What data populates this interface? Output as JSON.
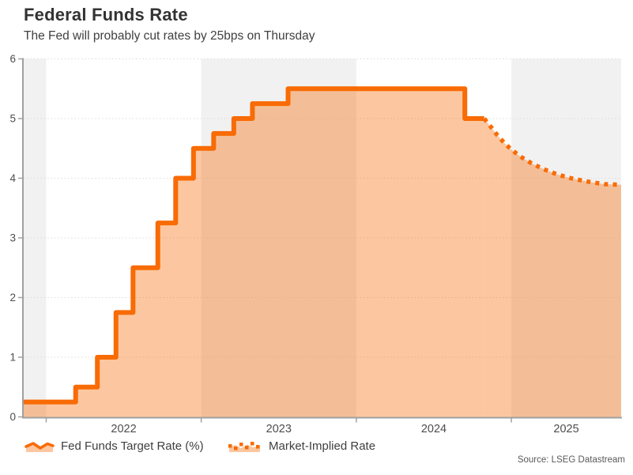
{
  "header": {
    "title": "Federal Funds Rate",
    "subtitle": "The Fed will probably cut rates by 25bps on Thursday"
  },
  "legend": {
    "items": [
      {
        "label": "Fed Funds Target Rate (%)",
        "style": "solid"
      },
      {
        "label": "Market-Implied Rate",
        "style": "dotted"
      }
    ]
  },
  "source": "Source: LSEG Datastream",
  "colors": {
    "line": "#f86b05",
    "fill": "rgba(248,107,5,0.38)",
    "band": "#f1f1f1",
    "grid": "#dcdcdc",
    "axis": "#a0a0a0",
    "tick_text": "#4d4d4d",
    "title_text": "#333333",
    "subtitle_text": "#404040",
    "legend_text": "#3f3f3f",
    "source_text": "#595959"
  },
  "chart_data": {
    "type": "line",
    "title": "Federal Funds Rate",
    "subtitle": "The Fed will probably cut rates by 25bps on Thursday",
    "xlabel": "",
    "ylabel": "",
    "ylim": [
      0,
      6
    ],
    "yticks": [
      0,
      1,
      2,
      3,
      4,
      5,
      6
    ],
    "x_domain": [
      2021.855,
      2025.708
    ],
    "xticks": [
      {
        "tick": 2022,
        "label": "2022",
        "label_center": 2022.5
      },
      {
        "tick": 2023,
        "label": "2023",
        "label_center": 2023.5
      },
      {
        "tick": 2024,
        "label": "2024",
        "label_center": 2024.5
      },
      {
        "tick": 2025,
        "label": "2025",
        "label_center": 2025.354
      }
    ],
    "shaded_bands": [
      [
        2021.855,
        2022.0
      ],
      [
        2023.0,
        2024.0
      ],
      [
        2025.0,
        2025.708
      ]
    ],
    "grid": "horizontal-dotted",
    "legend_position": "bottom",
    "series": [
      {
        "name": "Fed Funds Target Rate (%)",
        "style": "solid-step",
        "end_x": 2024.825,
        "steps": [
          {
            "x": 2021.855,
            "y": 0.25
          },
          {
            "x": 2022.19,
            "y": 0.5
          },
          {
            "x": 2022.33,
            "y": 1.0
          },
          {
            "x": 2022.45,
            "y": 1.75
          },
          {
            "x": 2022.56,
            "y": 2.5
          },
          {
            "x": 2022.72,
            "y": 3.25
          },
          {
            "x": 2022.835,
            "y": 4.0
          },
          {
            "x": 2022.95,
            "y": 4.5
          },
          {
            "x": 2023.08,
            "y": 4.75
          },
          {
            "x": 2023.21,
            "y": 5.0
          },
          {
            "x": 2023.33,
            "y": 5.25
          },
          {
            "x": 2023.56,
            "y": 5.5
          },
          {
            "x": 2024.7,
            "y": 5.0
          }
        ]
      },
      {
        "name": "Market-Implied Rate",
        "style": "dotted",
        "points": [
          {
            "x": 2024.825,
            "y": 5.0
          },
          {
            "x": 2024.865,
            "y": 4.87
          },
          {
            "x": 2024.91,
            "y": 4.72
          },
          {
            "x": 2024.955,
            "y": 4.59
          },
          {
            "x": 2025.0,
            "y": 4.48
          },
          {
            "x": 2025.06,
            "y": 4.36
          },
          {
            "x": 2025.13,
            "y": 4.25
          },
          {
            "x": 2025.21,
            "y": 4.15
          },
          {
            "x": 2025.3,
            "y": 4.06
          },
          {
            "x": 2025.4,
            "y": 3.99
          },
          {
            "x": 2025.5,
            "y": 3.94
          },
          {
            "x": 2025.6,
            "y": 3.9
          },
          {
            "x": 2025.708,
            "y": 3.89
          }
        ]
      }
    ]
  }
}
